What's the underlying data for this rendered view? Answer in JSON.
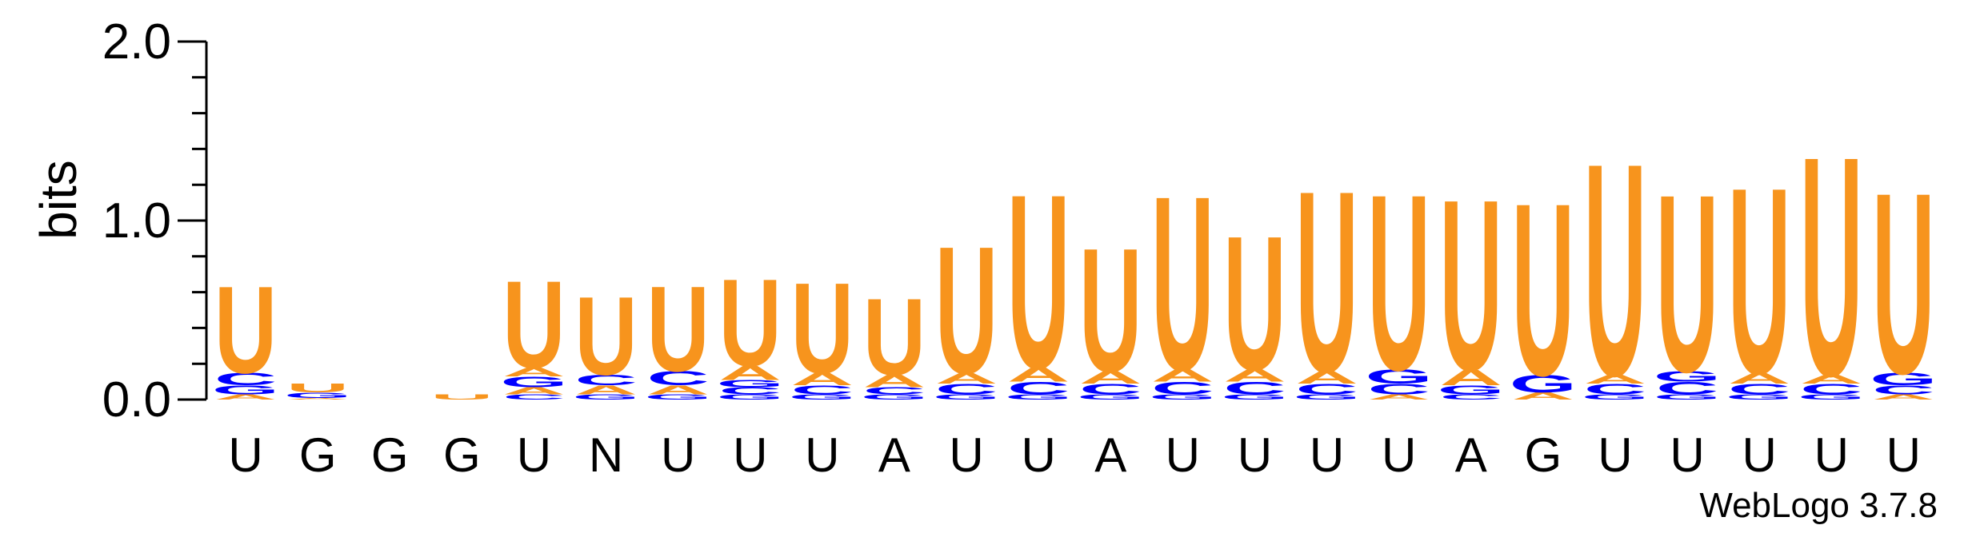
{
  "chart_data": {
    "type": "sequence-logo",
    "title": "",
    "ylabel": "bits",
    "ylim": [
      0,
      2.0
    ],
    "y_ticks": [
      "0.0",
      "1.0",
      "2.0"
    ],
    "credit": "WebLogo 3.7.8",
    "colors": {
      "U": "#f7941d",
      "A": "#f7941d",
      "G": "#0000ff",
      "C": "#0000ff"
    },
    "positions": [
      {
        "label": "U",
        "stack": [
          {
            "letter": "A",
            "h": 0.03
          },
          {
            "letter": "G",
            "h": 0.05
          },
          {
            "letter": "C",
            "h": 0.07
          },
          {
            "letter": "U",
            "h": 0.5
          }
        ]
      },
      {
        "label": "G",
        "stack": [
          {
            "letter": "A",
            "h": 0.01
          },
          {
            "letter": "G",
            "h": 0.03
          },
          {
            "letter": "U",
            "h": 0.05
          }
        ]
      },
      {
        "label": "G",
        "stack": []
      },
      {
        "label": "G",
        "stack": [
          {
            "letter": "U",
            "h": 0.03
          }
        ]
      },
      {
        "label": "U",
        "stack": [
          {
            "letter": "C",
            "h": 0.03
          },
          {
            "letter": "A",
            "h": 0.04
          },
          {
            "letter": "G",
            "h": 0.06
          },
          {
            "letter": "A",
            "h": 0.05
          },
          {
            "letter": "U",
            "h": 0.5
          }
        ]
      },
      {
        "label": "N",
        "stack": [
          {
            "letter": "G",
            "h": 0.03
          },
          {
            "letter": "A",
            "h": 0.05
          },
          {
            "letter": "C",
            "h": 0.06
          },
          {
            "letter": "U",
            "h": 0.45
          }
        ]
      },
      {
        "label": "U",
        "stack": [
          {
            "letter": "G",
            "h": 0.03
          },
          {
            "letter": "A",
            "h": 0.05
          },
          {
            "letter": "C",
            "h": 0.08
          },
          {
            "letter": "U",
            "h": 0.49
          }
        ]
      },
      {
        "label": "U",
        "stack": [
          {
            "letter": "G",
            "h": 0.03
          },
          {
            "letter": "C",
            "h": 0.04
          },
          {
            "letter": "G",
            "h": 0.04
          },
          {
            "letter": "A",
            "h": 0.08
          },
          {
            "letter": "U",
            "h": 0.5
          }
        ]
      },
      {
        "label": "U",
        "stack": [
          {
            "letter": "G",
            "h": 0.03
          },
          {
            "letter": "C",
            "h": 0.05
          },
          {
            "letter": "A",
            "h": 0.07
          },
          {
            "letter": "U",
            "h": 0.52
          }
        ]
      },
      {
        "label": "A",
        "stack": [
          {
            "letter": "G",
            "h": 0.03
          },
          {
            "letter": "C",
            "h": 0.04
          },
          {
            "letter": "A",
            "h": 0.07
          },
          {
            "letter": "U",
            "h": 0.44
          }
        ]
      },
      {
        "label": "U",
        "stack": [
          {
            "letter": "G",
            "h": 0.03
          },
          {
            "letter": "C",
            "h": 0.06
          },
          {
            "letter": "A",
            "h": 0.06
          },
          {
            "letter": "U",
            "h": 0.73
          }
        ]
      },
      {
        "label": "U",
        "stack": [
          {
            "letter": "G",
            "h": 0.03
          },
          {
            "letter": "C",
            "h": 0.07
          },
          {
            "letter": "A",
            "h": 0.08
          },
          {
            "letter": "U",
            "h": 1.0
          }
        ]
      },
      {
        "label": "A",
        "stack": [
          {
            "letter": "G",
            "h": 0.03
          },
          {
            "letter": "C",
            "h": 0.06
          },
          {
            "letter": "A",
            "h": 0.07
          },
          {
            "letter": "U",
            "h": 0.71
          }
        ]
      },
      {
        "label": "U",
        "stack": [
          {
            "letter": "G",
            "h": 0.03
          },
          {
            "letter": "C",
            "h": 0.07
          },
          {
            "letter": "A",
            "h": 0.07
          },
          {
            "letter": "U",
            "h": 1.0
          }
        ]
      },
      {
        "label": "U",
        "stack": [
          {
            "letter": "G",
            "h": 0.03
          },
          {
            "letter": "C",
            "h": 0.07
          },
          {
            "letter": "A",
            "h": 0.07
          },
          {
            "letter": "U",
            "h": 0.77
          }
        ]
      },
      {
        "label": "U",
        "stack": [
          {
            "letter": "G",
            "h": 0.03
          },
          {
            "letter": "C",
            "h": 0.06
          },
          {
            "letter": "A",
            "h": 0.07
          },
          {
            "letter": "U",
            "h": 1.04
          }
        ]
      },
      {
        "label": "U",
        "stack": [
          {
            "letter": "A",
            "h": 0.03
          },
          {
            "letter": "C",
            "h": 0.06
          },
          {
            "letter": "G",
            "h": 0.08
          },
          {
            "letter": "U",
            "h": 1.01
          }
        ]
      },
      {
        "label": "A",
        "stack": [
          {
            "letter": "C",
            "h": 0.03
          },
          {
            "letter": "G",
            "h": 0.05
          },
          {
            "letter": "A",
            "h": 0.09
          },
          {
            "letter": "U",
            "h": 0.98
          }
        ]
      },
      {
        "label": "G",
        "stack": [
          {
            "letter": "A",
            "h": 0.04
          },
          {
            "letter": "G",
            "h": 0.1
          },
          {
            "letter": "U",
            "h": 0.99
          }
        ]
      },
      {
        "label": "U",
        "stack": [
          {
            "letter": "G",
            "h": 0.03
          },
          {
            "letter": "C",
            "h": 0.06
          },
          {
            "letter": "A",
            "h": 0.05
          },
          {
            "letter": "U",
            "h": 1.22
          }
        ]
      },
      {
        "label": "U",
        "stack": [
          {
            "letter": "G",
            "h": 0.03
          },
          {
            "letter": "C",
            "h": 0.07
          },
          {
            "letter": "G",
            "h": 0.06
          },
          {
            "letter": "U",
            "h": 1.02
          }
        ]
      },
      {
        "label": "U",
        "stack": [
          {
            "letter": "G",
            "h": 0.03
          },
          {
            "letter": "C",
            "h": 0.06
          },
          {
            "letter": "A",
            "h": 0.06
          },
          {
            "letter": "U",
            "h": 1.07
          }
        ]
      },
      {
        "label": "U",
        "stack": [
          {
            "letter": "G",
            "h": 0.03
          },
          {
            "letter": "C",
            "h": 0.06
          },
          {
            "letter": "A",
            "h": 0.05
          },
          {
            "letter": "U",
            "h": 1.26
          }
        ]
      },
      {
        "label": "U",
        "stack": [
          {
            "letter": "A",
            "h": 0.03
          },
          {
            "letter": "C",
            "h": 0.05
          },
          {
            "letter": "G",
            "h": 0.07
          },
          {
            "letter": "U",
            "h": 1.04
          }
        ]
      }
    ]
  }
}
